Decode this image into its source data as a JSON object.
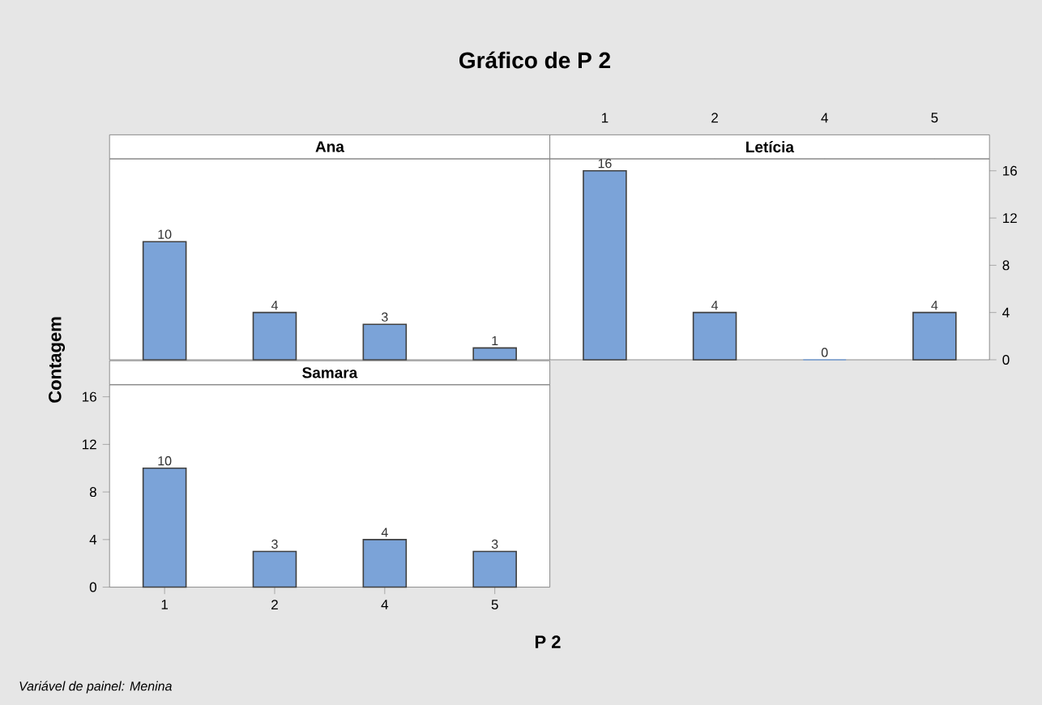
{
  "chart_data": [
    {
      "type": "bar",
      "title": "Gráfico de P 2",
      "subtitle": "Ana",
      "categories": [
        "1",
        "2",
        "4",
        "5"
      ],
      "values": [
        10,
        4,
        3,
        1
      ],
      "color": "#7ba3d8",
      "ylim": [
        0,
        17
      ],
      "yticks": [
        0,
        4,
        8,
        12,
        16
      ],
      "data_labels": true,
      "tick_labels": false
    },
    {
      "type": "bar",
      "subtitle": "Letícia",
      "categories": [
        "1",
        "2",
        "4",
        "5"
      ],
      "values": [
        16,
        4,
        0,
        4
      ],
      "color": "#7ba3d8",
      "ylim": [
        0,
        17
      ],
      "yticks": [
        0,
        4,
        8,
        12,
        16
      ],
      "data_labels": true
    },
    {
      "type": "bar",
      "subtitle": "Samara",
      "xlabel": "P 2",
      "ylabel": "Contagem",
      "annotations": [
        "Variável de painel: Menina"
      ],
      "categories": [
        "1",
        "2",
        "4",
        "5"
      ],
      "values": [
        10,
        3,
        4,
        3
      ],
      "color": "#7ba3d8",
      "ylim": [
        0,
        17
      ],
      "yticks": [
        0,
        4,
        8,
        12,
        16
      ],
      "data_labels": true
    }
  ]
}
